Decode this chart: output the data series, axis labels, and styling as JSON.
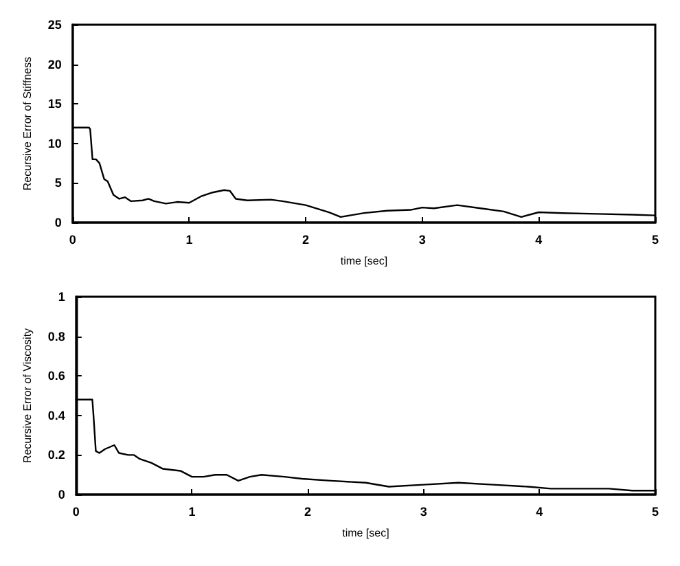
{
  "chart_data": [
    {
      "type": "line",
      "xlabel": "time [sec]",
      "ylabel": "Recursive Error of Stiffness",
      "xlim": [
        0,
        5
      ],
      "xticks": [
        0,
        1,
        2,
        3,
        4,
        5
      ],
      "ylim": [
        0,
        25
      ],
      "yticks": [
        0,
        5,
        10,
        15,
        20,
        25
      ],
      "grid": false,
      "marker": "none",
      "line_style": "solid",
      "series": [
        {
          "color": "#000000",
          "x": [
            0,
            0.14,
            0.15,
            0.17,
            0.2,
            0.23,
            0.27,
            0.3,
            0.35,
            0.4,
            0.45,
            0.5,
            0.6,
            0.65,
            0.7,
            0.8,
            0.9,
            1.0,
            1.1,
            1.2,
            1.3,
            1.35,
            1.4,
            1.5,
            1.7,
            1.8,
            2.0,
            2.2,
            2.3,
            2.5,
            2.7,
            2.9,
            3.0,
            3.1,
            3.3,
            3.5,
            3.7,
            3.85,
            4.0,
            4.2,
            4.5,
            4.8,
            5.0
          ],
          "values": [
            12,
            12,
            11.8,
            8,
            8,
            7.5,
            5.5,
            5.2,
            3.5,
            3,
            3.2,
            2.7,
            2.8,
            3,
            2.7,
            2.4,
            2.6,
            2.5,
            3.3,
            3.8,
            4.1,
            4,
            3,
            2.8,
            2.9,
            2.7,
            2.2,
            1.3,
            0.7,
            1.2,
            1.5,
            1.6,
            1.9,
            1.8,
            2.2,
            1.8,
            1.4,
            0.7,
            1.3,
            1.2,
            1.1,
            1.0,
            0.9
          ]
        }
      ]
    },
    {
      "type": "line",
      "xlabel": "time [sec]",
      "ylabel": "Recursive Error of Viscosity",
      "xlim": [
        0,
        5
      ],
      "xticks": [
        0,
        1,
        2,
        3,
        4,
        5
      ],
      "ylim": [
        0,
        1
      ],
      "yticks": [
        0,
        0.2,
        0.4,
        0.6,
        0.8,
        1
      ],
      "grid": false,
      "marker": "none",
      "line_style": "solid",
      "series": [
        {
          "color": "#000000",
          "x": [
            0,
            0.14,
            0.15,
            0.17,
            0.2,
            0.25,
            0.33,
            0.37,
            0.45,
            0.5,
            0.55,
            0.65,
            0.75,
            0.9,
            1.0,
            1.1,
            1.2,
            1.3,
            1.4,
            1.5,
            1.6,
            1.8,
            1.95,
            2.2,
            2.5,
            2.7,
            3.0,
            3.3,
            3.6,
            3.9,
            4.1,
            4.4,
            4.6,
            4.8,
            5.0
          ],
          "values": [
            0.48,
            0.48,
            0.4,
            0.22,
            0.21,
            0.23,
            0.25,
            0.21,
            0.2,
            0.2,
            0.18,
            0.16,
            0.13,
            0.12,
            0.09,
            0.09,
            0.1,
            0.1,
            0.07,
            0.09,
            0.1,
            0.09,
            0.08,
            0.07,
            0.06,
            0.04,
            0.05,
            0.06,
            0.05,
            0.04,
            0.03,
            0.03,
            0.03,
            0.02,
            0.02
          ]
        }
      ]
    }
  ]
}
